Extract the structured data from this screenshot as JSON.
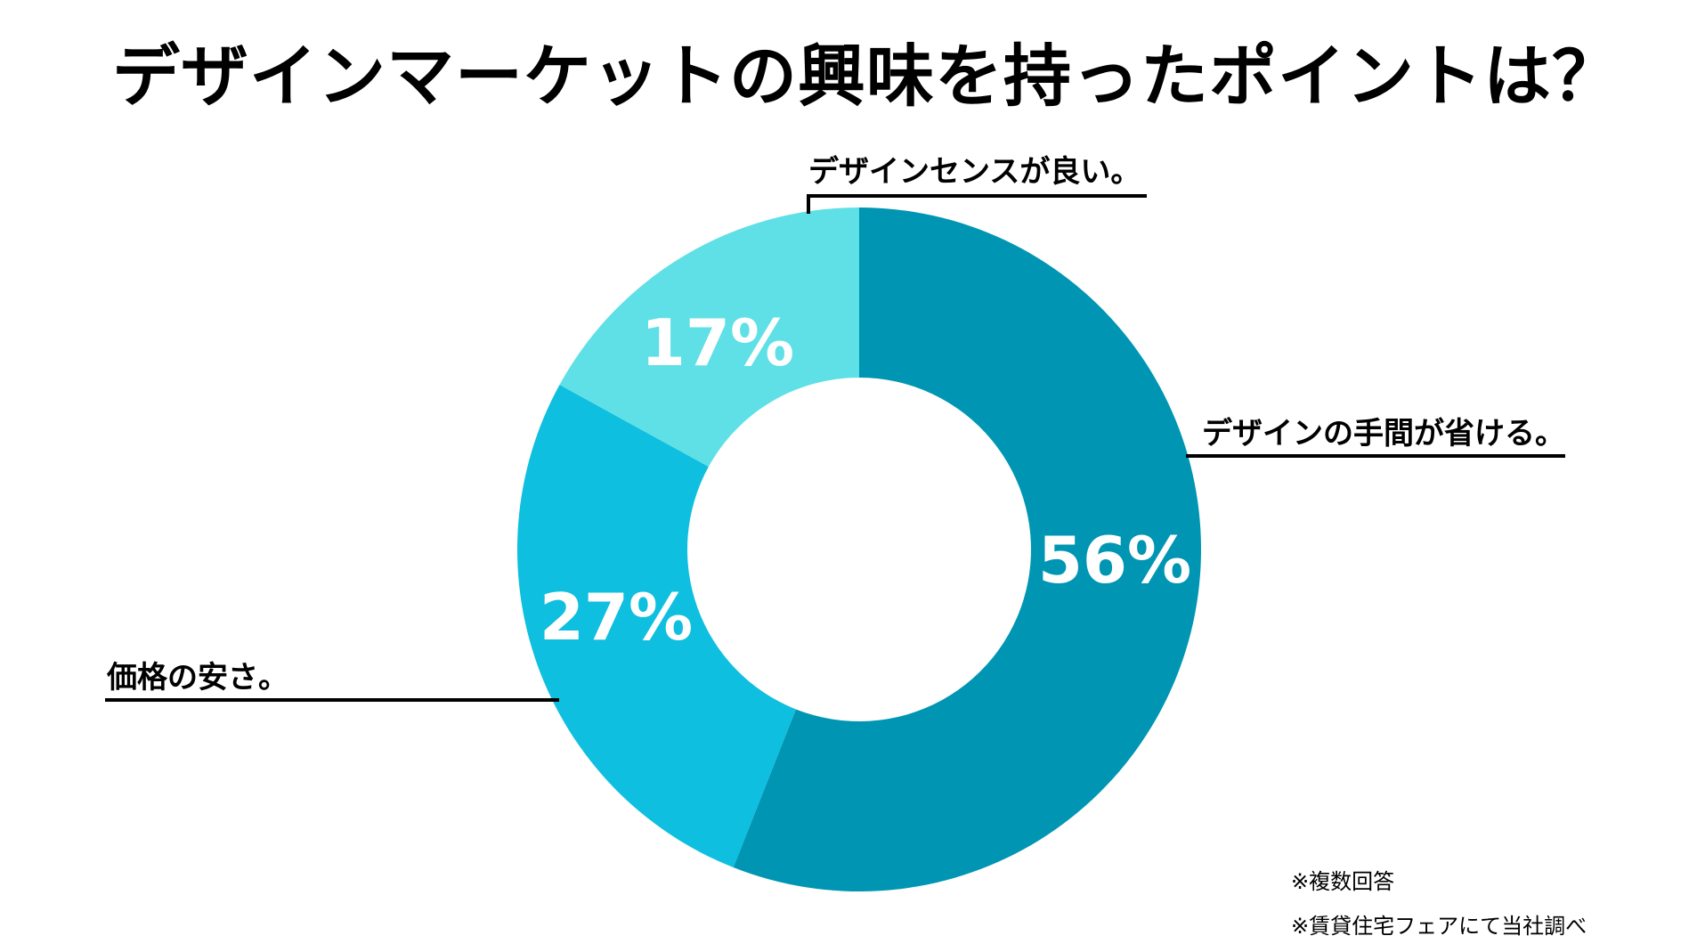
{
  "chart_data": {
    "type": "pie",
    "title": "デザインマーケットの興味を持ったポイントは？",
    "slices": [
      {
        "label": "デザインの手間が省ける。",
        "value": 56,
        "value_label": "56%",
        "color": "#0096b3"
      },
      {
        "label": "価格の安さ。",
        "value": 27,
        "value_label": "27%",
        "color": "#0fbfdf"
      },
      {
        "label": "デザインセンスが良い。",
        "value": 17,
        "value_label": "17%",
        "color": "#5ee0e6"
      }
    ],
    "donut": true,
    "start": "12 o'clock",
    "direction": "clockwise",
    "legend": "callouts"
  },
  "notes": [
    "※複数回答",
    "※賃貸住宅フェアにて当社調べ"
  ]
}
